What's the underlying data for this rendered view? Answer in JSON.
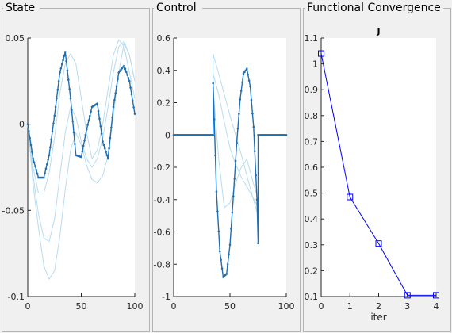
{
  "panels": [
    {
      "title": "State"
    },
    {
      "title": "Control"
    },
    {
      "title": "Functional Convergence"
    }
  ],
  "colors": {
    "background": "#f0f0f0",
    "axes_bg": "#ffffff",
    "current": "#1f6fb2",
    "faded": "#b8dcef",
    "convergence": "#0000ff"
  },
  "chart_data": [
    {
      "type": "line",
      "panel": "State",
      "title": "",
      "xlabel": "",
      "ylabel": "",
      "xlim": [
        0,
        100
      ],
      "ylim": [
        -0.1,
        0.05
      ],
      "xticks": [
        0,
        50,
        100
      ],
      "yticks": [
        -0.1,
        -0.05,
        0,
        0.05
      ],
      "ytick_labels": [
        "-0.1",
        "-0.05",
        "0",
        "0.05"
      ],
      "xtick_labels": [
        "0",
        "50",
        "100"
      ],
      "series": [
        {
          "role": "previous",
          "x": [
            0,
            5,
            10,
            15,
            20,
            25,
            30,
            35,
            40,
            45,
            50,
            55,
            60,
            65,
            70,
            75,
            80,
            85,
            90,
            95,
            100
          ],
          "y": [
            0,
            -0.035,
            -0.06,
            -0.082,
            -0.09,
            -0.085,
            -0.065,
            -0.038,
            -0.015,
            -0.005,
            -0.012,
            -0.024,
            -0.032,
            -0.034,
            -0.03,
            -0.018,
            0.005,
            0.03,
            0.047,
            0.04,
            0.025
          ]
        },
        {
          "role": "previous",
          "x": [
            0,
            5,
            10,
            15,
            20,
            25,
            30,
            35,
            40,
            45,
            50,
            55,
            60,
            65,
            70,
            75,
            80,
            85,
            90,
            95,
            100
          ],
          "y": [
            0,
            -0.03,
            -0.052,
            -0.066,
            -0.068,
            -0.055,
            -0.03,
            -0.005,
            0.01,
            0.004,
            -0.01,
            -0.02,
            -0.025,
            -0.02,
            -0.008,
            0.01,
            0.03,
            0.045,
            0.048,
            0.04,
            0.025
          ]
        },
        {
          "role": "previous",
          "x": [
            0,
            5,
            10,
            15,
            20,
            25,
            30,
            35,
            40,
            45,
            50,
            55,
            60,
            65,
            70,
            75,
            80,
            85,
            90,
            95,
            100
          ],
          "y": [
            0,
            -0.025,
            -0.04,
            -0.04,
            -0.028,
            -0.008,
            0.018,
            0.035,
            0.041,
            0.035,
            0.015,
            -0.005,
            -0.02,
            -0.015,
            0.0,
            0.02,
            0.04,
            0.049,
            0.045,
            0.03,
            0.015
          ]
        },
        {
          "role": "current",
          "x": [
            0,
            5,
            10,
            15,
            20,
            25,
            30,
            35,
            40,
            45,
            50,
            55,
            60,
            65,
            70,
            75,
            80,
            85,
            90,
            95,
            100
          ],
          "y": [
            0,
            -0.02,
            -0.031,
            -0.031,
            -0.018,
            0.005,
            0.03,
            0.042,
            0.015,
            -0.018,
            -0.019,
            -0.003,
            0.01,
            0.012,
            -0.01,
            -0.02,
            0.01,
            0.03,
            0.034,
            0.025,
            0.006
          ]
        }
      ]
    },
    {
      "type": "line",
      "panel": "Control",
      "title": "",
      "xlabel": "",
      "ylabel": "",
      "xlim": [
        0,
        100
      ],
      "ylim": [
        -1,
        0.6
      ],
      "xticks": [
        0,
        50,
        100
      ],
      "yticks": [
        -1,
        -0.8,
        -0.6,
        -0.4,
        -0.2,
        0,
        0.2,
        0.4,
        0.6
      ],
      "ytick_labels": [
        "-1",
        "-0.8",
        "-0.6",
        "-0.4",
        "-0.2",
        "0",
        "0.2",
        "0.4",
        "0.6"
      ],
      "xtick_labels": [
        "0",
        "50",
        "100"
      ],
      "series": [
        {
          "role": "previous",
          "x": [
            0,
            10,
            20,
            30,
            35,
            35,
            40,
            45,
            50,
            55,
            60,
            65,
            70,
            75,
            75,
            80,
            90,
            100
          ],
          "y": [
            0,
            0,
            0,
            0,
            0,
            0.5,
            0.38,
            0.25,
            0.12,
            0.0,
            -0.12,
            -0.25,
            -0.38,
            -0.5,
            0,
            0,
            0,
            0
          ]
        },
        {
          "role": "previous",
          "x": [
            0,
            10,
            20,
            30,
            35,
            35,
            40,
            45,
            50,
            55,
            60,
            65,
            70,
            75,
            75,
            80,
            90,
            100
          ],
          "y": [
            0,
            0,
            0,
            0,
            0,
            0.38,
            0.25,
            0.08,
            -0.08,
            -0.18,
            -0.26,
            -0.32,
            -0.38,
            -0.45,
            0,
            0,
            0,
            0
          ]
        },
        {
          "role": "previous",
          "x": [
            0,
            10,
            20,
            30,
            35,
            35,
            40,
            45,
            50,
            55,
            60,
            65,
            70,
            75,
            75,
            80,
            90,
            100
          ],
          "y": [
            0,
            0,
            0,
            0,
            0,
            0.3,
            -0.15,
            -0.45,
            -0.42,
            -0.3,
            -0.2,
            -0.15,
            -0.28,
            -0.4,
            0,
            0,
            0,
            0
          ]
        },
        {
          "role": "current",
          "x": [
            0,
            10,
            20,
            30,
            35,
            35,
            38,
            41,
            44,
            47,
            50,
            53,
            56,
            59,
            62,
            65,
            68,
            71,
            74,
            75,
            75,
            80,
            90,
            100
          ],
          "y": [
            0,
            0,
            0,
            0,
            0,
            0.32,
            -0.35,
            -0.72,
            -0.88,
            -0.86,
            -0.68,
            -0.38,
            -0.05,
            0.22,
            0.38,
            0.41,
            0.3,
            0.05,
            -0.4,
            -0.67,
            0,
            0,
            0,
            0
          ]
        }
      ]
    },
    {
      "type": "line",
      "panel": "Functional Convergence",
      "title": "J",
      "xlabel": "iter",
      "ylabel": "",
      "xlim": [
        0,
        4
      ],
      "ylim": [
        0.1,
        1.1
      ],
      "xticks": [
        0,
        1,
        2,
        3,
        4
      ],
      "yticks": [
        0.1,
        0.2,
        0.3,
        0.4,
        0.5,
        0.6,
        0.7,
        0.8,
        0.9,
        1,
        1.1
      ],
      "ytick_labels": [
        "0.1",
        "0.2",
        "0.3",
        "0.4",
        "0.5",
        "0.6",
        "0.7",
        "0.8",
        "0.9",
        "1",
        "1.1"
      ],
      "xtick_labels": [
        "0",
        "1",
        "2",
        "3",
        "4"
      ],
      "series": [
        {
          "role": "convergence",
          "x": [
            0,
            1,
            2,
            3,
            4
          ],
          "y": [
            1.04,
            0.485,
            0.305,
            0.105,
            0.105
          ]
        }
      ]
    }
  ]
}
